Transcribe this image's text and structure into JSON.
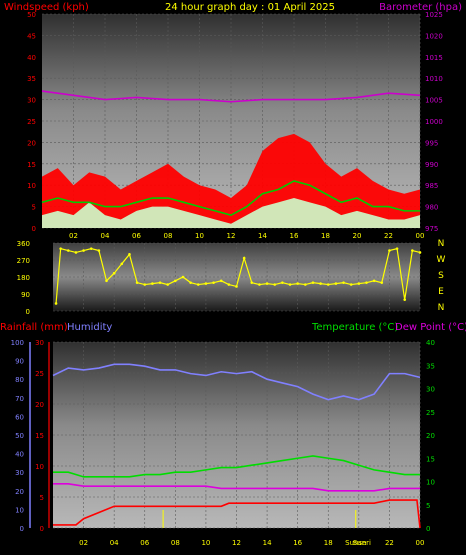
{
  "header": {
    "left": "Windspeed (kph)",
    "center": "24 hour graph day : 01 April 2025",
    "right": "Barometer (hpa)"
  },
  "mid_header": {
    "rain": "Rainfall (mm)",
    "humidity": "Humidity",
    "temperature": "Temperature (°C)",
    "dewpoint": "Dew Point (°C)"
  },
  "x_ticks": [
    "02",
    "04",
    "06",
    "08",
    "10",
    "12",
    "14",
    "16",
    "18",
    "20",
    "22",
    "00"
  ],
  "bottom_x_ticks": [
    "02",
    "04",
    "06",
    "08",
    "10",
    "12",
    "14",
    "16",
    "18",
    "Sunset",
    "Sunrise",
    "22",
    "00"
  ],
  "compass_labels": [
    "N",
    "W",
    "S",
    "E",
    "N"
  ],
  "colors": {
    "wind_speed": "#ff0000",
    "wind_avg": "#00cc00",
    "gust": "#ccffcc",
    "barometer": "#cc00cc",
    "direction": "#ffff00",
    "humidity": "#8080ff",
    "temperature": "#00dd00",
    "dewpoint": "#dd00dd",
    "rain": "#ff0000"
  },
  "chart_data": [
    {
      "type": "line",
      "panel": "wind-barometer",
      "x_range": [
        0,
        24
      ],
      "ylim_left": [
        0,
        50
      ],
      "ylim_right": [
        975,
        1025
      ],
      "yticks_left": [
        "0",
        "5",
        "10",
        "15",
        "20",
        "25",
        "30",
        "35",
        "40",
        "45",
        "50"
      ],
      "yticks_right": [
        "975",
        "980",
        "985",
        "990",
        "995",
        "1000",
        "1005",
        "1010",
        "1015",
        "1020",
        "1025"
      ],
      "series": [
        {
          "key": "barometer",
          "axis": "right",
          "x": [
            0,
            2,
            4,
            6,
            8,
            10,
            12,
            14,
            16,
            18,
            20,
            22,
            24
          ],
          "values": [
            1007,
            1006,
            1005,
            1005.5,
            1005,
            1005,
            1004.5,
            1005,
            1005,
            1005,
            1005.5,
            1006.5,
            1006
          ]
        },
        {
          "key": "wind_speed",
          "axis": "left",
          "x": [
            0,
            1,
            2,
            3,
            4,
            5,
            6,
            7,
            8,
            9,
            10,
            11,
            12,
            13,
            14,
            15,
            16,
            17,
            18,
            19,
            20,
            21,
            22,
            23,
            24
          ],
          "values": [
            12,
            14,
            10,
            13,
            12,
            9,
            11,
            13,
            15,
            12,
            10,
            9,
            7,
            10,
            18,
            21,
            22,
            20,
            15,
            12,
            14,
            11,
            9,
            8,
            9
          ]
        },
        {
          "key": "wind_avg",
          "axis": "left",
          "x": [
            0,
            1,
            2,
            3,
            4,
            5,
            6,
            7,
            8,
            9,
            10,
            11,
            12,
            13,
            14,
            15,
            16,
            17,
            18,
            19,
            20,
            21,
            22,
            23,
            24
          ],
          "values": [
            6,
            7,
            6,
            6,
            5,
            5,
            6,
            7,
            7,
            6,
            5,
            4,
            3,
            5,
            8,
            9,
            11,
            10,
            8,
            6,
            7,
            5,
            5,
            4,
            4
          ]
        },
        {
          "key": "gust",
          "axis": "left",
          "x": [
            0,
            1,
            2,
            3,
            4,
            5,
            6,
            7,
            8,
            9,
            10,
            11,
            12,
            13,
            14,
            15,
            16,
            17,
            18,
            19,
            20,
            21,
            22,
            23,
            24
          ],
          "values": [
            3,
            4,
            3,
            6,
            3,
            2,
            4,
            5,
            5,
            4,
            3,
            2,
            1,
            3,
            5,
            6,
            7,
            6,
            5,
            3,
            4,
            3,
            2,
            2,
            3
          ]
        }
      ]
    },
    {
      "type": "scatter",
      "panel": "wind-direction",
      "x_range": [
        0,
        24
      ],
      "ylim": [
        0,
        360
      ],
      "yticks": [
        "0",
        "90",
        "180",
        "270",
        "360"
      ],
      "series": [
        {
          "key": "direction",
          "x": [
            0.2,
            0.5,
            1,
            1.5,
            2,
            2.5,
            3,
            3.5,
            4,
            4.5,
            5,
            5.5,
            6,
            6.5,
            7,
            7.5,
            8,
            8.5,
            9,
            9.5,
            10,
            10.5,
            11,
            11.5,
            12,
            12.5,
            13,
            13.5,
            14,
            14.5,
            15,
            15.5,
            16,
            16.5,
            17,
            17.5,
            18,
            18.5,
            19,
            19.5,
            20,
            20.5,
            21,
            21.5,
            22,
            22.5,
            23,
            23.5,
            24
          ],
          "values": [
            40,
            330,
            320,
            310,
            320,
            330,
            320,
            160,
            200,
            250,
            300,
            150,
            140,
            145,
            150,
            140,
            160,
            180,
            150,
            140,
            145,
            150,
            160,
            140,
            130,
            280,
            150,
            140,
            145,
            140,
            150,
            140,
            145,
            140,
            150,
            145,
            140,
            145,
            150,
            140,
            145,
            150,
            160,
            150,
            320,
            330,
            60,
            320,
            310
          ]
        }
      ]
    },
    {
      "type": "line",
      "panel": "temp-humidity-rain",
      "x_range": [
        0,
        24
      ],
      "ylim_rain": [
        0,
        30
      ],
      "ylim_humidity": [
        0,
        100
      ],
      "ylim_temp": [
        0,
        40
      ],
      "yticks_rain": [
        "0",
        "5",
        "10",
        "15",
        "20",
        "25",
        "30"
      ],
      "yticks_humidity": [
        "0",
        "10",
        "20",
        "30",
        "40",
        "50",
        "60",
        "70",
        "80",
        "90",
        "100"
      ],
      "yticks_temp": [
        "0",
        "5",
        "10",
        "15",
        "20",
        "25",
        "30",
        "35",
        "40"
      ],
      "series": [
        {
          "key": "humidity",
          "axis": "humidity",
          "x": [
            0,
            1,
            2,
            3,
            4,
            5,
            6,
            7,
            8,
            9,
            10,
            11,
            12,
            13,
            14,
            15,
            16,
            17,
            18,
            19,
            20,
            21,
            22,
            23,
            24
          ],
          "values": [
            82,
            86,
            85,
            86,
            88,
            88,
            87,
            85,
            85,
            83,
            82,
            84,
            83,
            84,
            80,
            78,
            76,
            72,
            69,
            71,
            69,
            72,
            83,
            83,
            81
          ]
        },
        {
          "key": "temperature",
          "axis": "temp",
          "x": [
            0,
            1,
            2,
            3,
            4,
            5,
            6,
            7,
            8,
            9,
            10,
            11,
            12,
            13,
            14,
            15,
            16,
            17,
            18,
            19,
            20,
            21,
            22,
            23,
            24
          ],
          "values": [
            12,
            12,
            11,
            11,
            11,
            11,
            11.5,
            11.5,
            12,
            12,
            12.5,
            13,
            13,
            13.5,
            14,
            14.5,
            15,
            15.5,
            15,
            14.5,
            13.5,
            12.5,
            12,
            11.5,
            11.5
          ]
        },
        {
          "key": "dewpoint",
          "axis": "temp",
          "x": [
            0,
            1,
            2,
            3,
            4,
            5,
            6,
            7,
            8,
            9,
            10,
            11,
            12,
            13,
            14,
            15,
            16,
            17,
            18,
            19,
            20,
            21,
            22,
            23,
            24
          ],
          "values": [
            9.5,
            9.5,
            9,
            9,
            9,
            9,
            9,
            9,
            9,
            9,
            9,
            8.5,
            8.5,
            8.5,
            8.5,
            8.5,
            8.5,
            8.5,
            8,
            8,
            8,
            8,
            8.5,
            8.5,
            8.5
          ]
        },
        {
          "key": "rain",
          "axis": "rain",
          "x": [
            0,
            1.5,
            2,
            4,
            5,
            11,
            11.5,
            21,
            22,
            23.8,
            24
          ],
          "values": [
            0.5,
            0.5,
            1.5,
            3.5,
            3.5,
            3.5,
            4,
            4,
            4.5,
            4.5,
            0
          ]
        }
      ]
    }
  ]
}
